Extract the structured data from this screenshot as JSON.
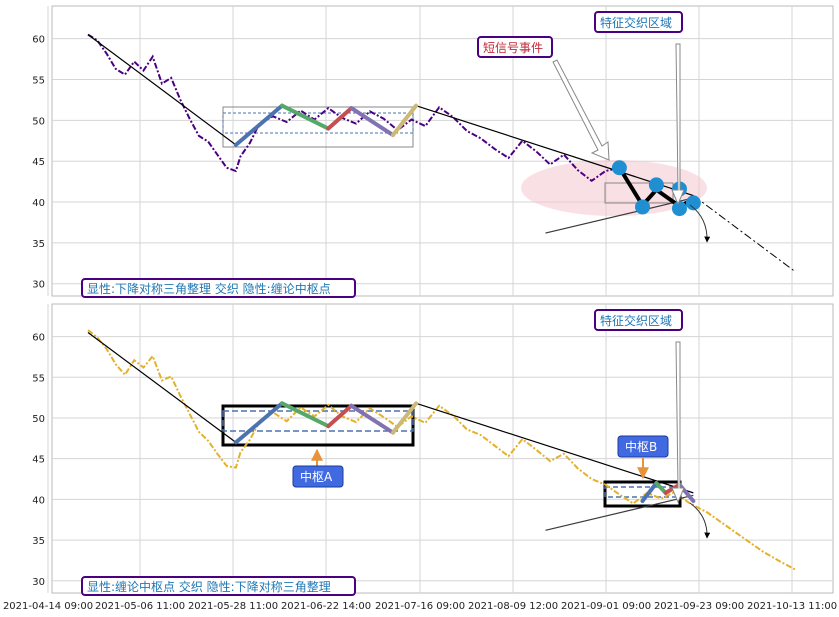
{
  "chart_data": [
    {
      "type": "line",
      "title": "",
      "xlabel": "",
      "ylabel": "",
      "ylim": [
        28.5,
        64
      ],
      "yticks": [
        30,
        35,
        40,
        45,
        50,
        55,
        60
      ],
      "grid": true,
      "series": [
        {
          "style": "dashdot",
          "color": "#4b0082",
          "points": [
            [
              0,
              60.5
            ],
            [
              2,
              59.8
            ],
            [
              4,
              58.2
            ],
            [
              6,
              56.3
            ],
            [
              8,
              55.6
            ],
            [
              10,
              57.2
            ],
            [
              12,
              56.1
            ],
            [
              14,
              57.8
            ],
            [
              16,
              54.5
            ],
            [
              18,
              55.2
            ],
            [
              20,
              52.5
            ],
            [
              22,
              50.2
            ],
            [
              24,
              48.1
            ],
            [
              26,
              47.4
            ],
            [
              28,
              45.8
            ],
            [
              30,
              44.2
            ],
            [
              32,
              43.8
            ],
            [
              33,
              45.6
            ],
            [
              35,
              47.2
            ],
            [
              37,
              49.5
            ],
            [
              40,
              50.5
            ],
            [
              43,
              49.8
            ],
            [
              46,
              51.2
            ],
            [
              49,
              50.1
            ],
            [
              52,
              51.5
            ],
            [
              55,
              50.3
            ],
            [
              58,
              49.6
            ],
            [
              61,
              51.1
            ],
            [
              64,
              50.2
            ],
            [
              67,
              48.8
            ],
            [
              70,
              50.1
            ],
            [
              73,
              49.3
            ],
            [
              76,
              51.6
            ],
            [
              79,
              50.4
            ],
            [
              82,
              48.7
            ],
            [
              85,
              47.8
            ],
            [
              88,
              46.5
            ],
            [
              91,
              45.4
            ],
            [
              94,
              47.5
            ],
            [
              97,
              46.2
            ],
            [
              100,
              44.6
            ],
            [
              103,
              45.8
            ],
            [
              106,
              43.9
            ],
            [
              109,
              42.6
            ],
            [
              112,
              43.8
            ],
            [
              115,
              44.2
            ]
          ]
        },
        {
          "style": "solid",
          "color": "#000000",
          "points": [
            [
              0,
              60.5
            ],
            [
              32,
              47
            ]
          ]
        },
        {
          "style": "solid",
          "color": "#000000",
          "points": [
            [
              71,
              51.8
            ],
            [
              131,
              40.8
            ]
          ]
        },
        {
          "style": "dashdot",
          "color": "#000000",
          "points": [
            [
              131,
              40.8
            ],
            [
              153,
              31.5
            ]
          ]
        },
        {
          "style": "solid",
          "color": "#3a3a3a",
          "points": [
            [
              99,
              36.2
            ],
            [
              131,
              40.5
            ]
          ]
        },
        {
          "style": "zigzag",
          "colors": [
            "#4c72b0",
            "#55a868",
            "#c44e52",
            "#8172b2",
            "#ccb974",
            "#64b5cd"
          ],
          "points": [
            [
              32,
              47
            ],
            [
              42,
              51.8
            ],
            [
              52,
              49
            ],
            [
              57,
              51.5
            ],
            [
              66,
              48.2
            ],
            [
              71,
              51.8
            ]
          ]
        },
        {
          "style": "thick",
          "color": "#000000",
          "points": [
            [
              115,
              44.2
            ],
            [
              120,
              39.6
            ],
            [
              123,
              41.5
            ],
            [
              128,
              39.5
            ],
            [
              131,
              40.3
            ]
          ]
        }
      ],
      "markers": [
        [
          115,
          44.2
        ],
        [
          120,
          39.4
        ],
        [
          123,
          42.1
        ],
        [
          128,
          41.6
        ],
        [
          128,
          39.2
        ],
        [
          131,
          39.9
        ]
      ],
      "text_boxes": {
        "left_note": "显性:下降对称三角整理 交织 隐性:缠论中枢点",
        "short_signal": "短信号事件",
        "feature_zone": "特征交织区域"
      }
    },
    {
      "type": "line",
      "title": "",
      "xlabel": "",
      "ylabel": "",
      "ylim": [
        28.5,
        64
      ],
      "yticks": [
        30,
        35,
        40,
        45,
        50,
        55,
        60
      ],
      "grid": true,
      "series": [
        {
          "style": "dashdot",
          "color": "#e3b12b",
          "points": [
            [
              0,
              60.8
            ],
            [
              2,
              59.9
            ],
            [
              4,
              58.5
            ],
            [
              6,
              56.6
            ],
            [
              8,
              55.3
            ],
            [
              10,
              57.1
            ],
            [
              12,
              56.2
            ],
            [
              14,
              57.6
            ],
            [
              16,
              54.6
            ],
            [
              18,
              55.1
            ],
            [
              20,
              52.7
            ],
            [
              22,
              50.5
            ],
            [
              24,
              48.3
            ],
            [
              26,
              47.2
            ],
            [
              28,
              45.6
            ],
            [
              30,
              44.1
            ],
            [
              32,
              43.9
            ],
            [
              33,
              45.8
            ],
            [
              35,
              47.3
            ],
            [
              37,
              49.4
            ],
            [
              40,
              50.7
            ],
            [
              43,
              49.6
            ],
            [
              46,
              51.3
            ],
            [
              49,
              50.2
            ],
            [
              52,
              51.6
            ],
            [
              55,
              50.2
            ],
            [
              58,
              49.5
            ],
            [
              61,
              51.2
            ],
            [
              64,
              50.1
            ],
            [
              67,
              48.9
            ],
            [
              70,
              50.2
            ],
            [
              73,
              49.4
            ],
            [
              76,
              51.5
            ],
            [
              79,
              50.3
            ],
            [
              82,
              48.6
            ],
            [
              85,
              47.9
            ],
            [
              88,
              46.6
            ],
            [
              91,
              45.3
            ],
            [
              94,
              47.4
            ],
            [
              97,
              46.1
            ],
            [
              100,
              44.7
            ],
            [
              103,
              45.6
            ],
            [
              106,
              43.8
            ],
            [
              109,
              42.5
            ],
            [
              112,
              41.8
            ],
            [
              115,
              40.6
            ],
            [
              118,
              39.5
            ],
            [
              121,
              40.8
            ],
            [
              124,
              40.1
            ],
            [
              127,
              40.9
            ],
            [
              130,
              39.6
            ],
            [
              134,
              38.4
            ],
            [
              138,
              36.8
            ],
            [
              142,
              35.2
            ],
            [
              146,
              33.6
            ],
            [
              150,
              32.3
            ],
            [
              153,
              31.4
            ]
          ]
        },
        {
          "style": "solid",
          "color": "#000000",
          "points": [
            [
              0,
              60.5
            ],
            [
              32,
              47
            ]
          ]
        },
        {
          "style": "solid",
          "color": "#000000",
          "points": [
            [
              71,
              51.8
            ],
            [
              131,
              40.8
            ]
          ]
        },
        {
          "style": "solid",
          "color": "#3a3a3a",
          "points": [
            [
              99,
              36.2
            ],
            [
              131,
              40.5
            ]
          ]
        },
        {
          "style": "zigzag",
          "colors": [
            "#4c72b0",
            "#55a868",
            "#c44e52",
            "#8172b2",
            "#ccb974",
            "#64b5cd"
          ],
          "points": [
            [
              32,
              47
            ],
            [
              42,
              51.8
            ],
            [
              52,
              49
            ],
            [
              57,
              51.5
            ],
            [
              66,
              48.2
            ],
            [
              71,
              51.8
            ]
          ]
        },
        {
          "style": "zigzag",
          "colors": [
            "#4c72b0",
            "#55a868",
            "#c44e52",
            "#8172b2"
          ],
          "points": [
            [
              120,
              39.8
            ],
            [
              123,
              42
            ],
            [
              125,
              40.8
            ],
            [
              128,
              41.8
            ],
            [
              131,
              39.8
            ]
          ]
        }
      ],
      "text_boxes": {
        "left_note": "显性:缠论中枢点 交织 隐性:下降对称三角整理",
        "zs_a": "中枢A",
        "zs_b": "中枢B",
        "feature_zone": "特征交织区域"
      }
    }
  ],
  "x_ticks": [
    "2021-04-14 09:00",
    "2021-05-06 11:00",
    "2021-05-28 11:00",
    "2021-06-22 14:00",
    "2021-07-16 09:00",
    "2021-08-09 12:00",
    "2021-09-01 09:00",
    "2021-09-23 09:00",
    "2021-10-13 11:00"
  ]
}
